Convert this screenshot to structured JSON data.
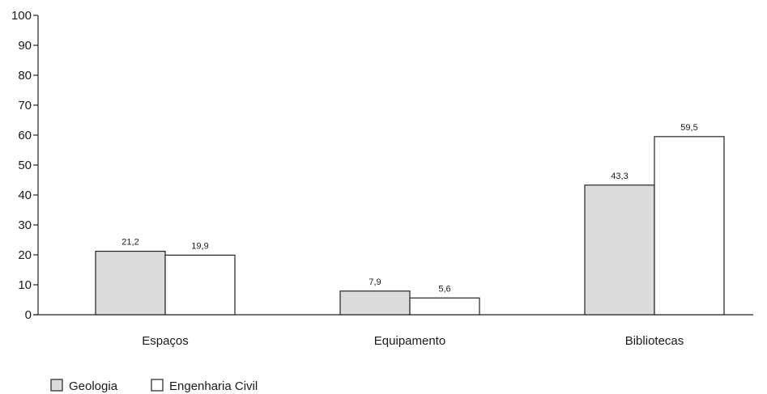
{
  "chart_data": {
    "type": "bar",
    "categories": [
      "Espaços",
      "Equipamento",
      "Bibliotecas"
    ],
    "series": [
      {
        "name": "Geologia",
        "values": [
          21.2,
          7.9,
          43.3
        ],
        "labels": [
          "21,2",
          "7,9",
          "43,3"
        ],
        "color": "#dcdcdc"
      },
      {
        "name": "Engenharia Civil",
        "values": [
          19.9,
          5.6,
          59.5
        ],
        "labels": [
          "19,9",
          "5,6",
          "59,5"
        ],
        "color": "#ffffff"
      }
    ],
    "y_ticks": [
      "0",
      "10",
      "20",
      "30",
      "40",
      "50",
      "60",
      "70",
      "80",
      "90",
      "100"
    ],
    "ylim": [
      0,
      100
    ],
    "grid": false,
    "legend_position": "bottom-left",
    "stroke_color": "#222222"
  }
}
